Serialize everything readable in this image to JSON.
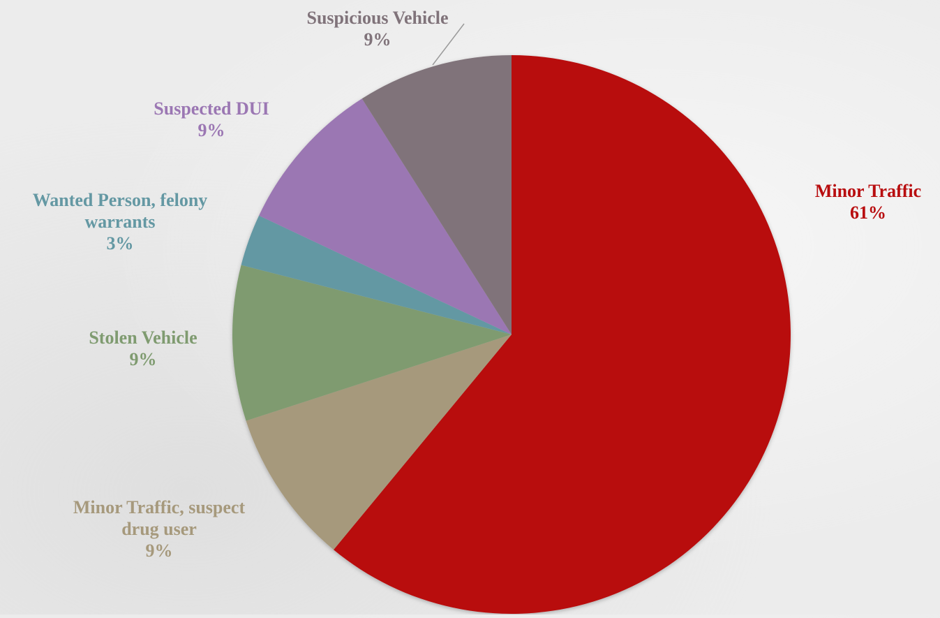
{
  "chart_data": {
    "type": "pie",
    "title": "",
    "slices": [
      {
        "name": "Minor Traffic",
        "label_lines": [
          "Minor Traffic"
        ],
        "value": 61,
        "percent_label": "61%",
        "color": "#b80d0f"
      },
      {
        "name": "Minor Traffic, suspect drug user",
        "label_lines": [
          "Minor Traffic, suspect",
          "drug user"
        ],
        "value": 9,
        "percent_label": "9%",
        "color": "#a6997c"
      },
      {
        "name": "Stolen Vehicle",
        "label_lines": [
          "Stolen Vehicle"
        ],
        "value": 9,
        "percent_label": "9%",
        "color": "#7f9b70"
      },
      {
        "name": "Wanted Person, felony warrants",
        "label_lines": [
          "Wanted Person, felony",
          "warrants"
        ],
        "value": 3,
        "percent_label": "3%",
        "color": "#6498a3"
      },
      {
        "name": "Suspected DUI",
        "label_lines": [
          "Suspected DUI"
        ],
        "value": 9,
        "percent_label": "9%",
        "color": "#9b77b3"
      },
      {
        "name": "Suspicious Vehicle",
        "label_lines": [
          "Suspicious Vehicle"
        ],
        "value": 9,
        "percent_label": "9%",
        "color": "#80737a"
      }
    ],
    "start_angle_deg": 0,
    "direction": "clockwise",
    "legend": "none",
    "data_labels": "outside",
    "label_colors": {
      "Minor Traffic": "#b80d0f",
      "Minor Traffic, suspect drug user": "#a6997c",
      "Stolen Vehicle": "#7f9b70",
      "Wanted Person, felony warrants": "#6498a3",
      "Suspected DUI": "#9b77b3",
      "Suspicious Vehicle": "#80737a"
    }
  }
}
